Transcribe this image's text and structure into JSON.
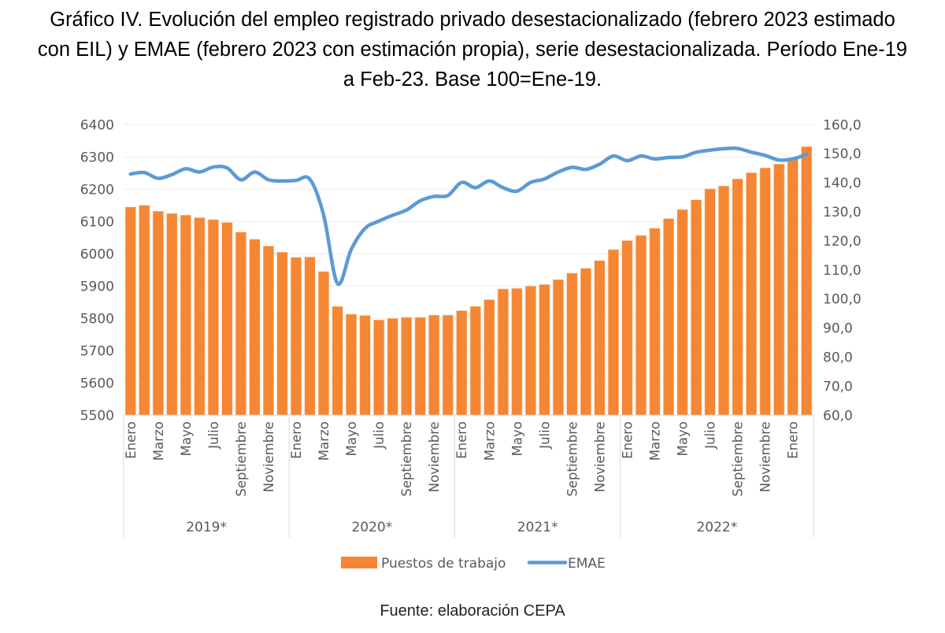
{
  "chart_data": {
    "type": "bar+line",
    "title": "Gráfico IV. Evolución del empleo registrado privado desestacionalizado (febrero 2023 estimado con EIL) y EMAE (febrero 2023 con estimación propia), serie desestacionalizada. Período Ene-19 a Feb-23. Base 100=Ene-19.",
    "x_tick_labels": [
      "Enero",
      "",
      "Marzo",
      "",
      "Mayo",
      "",
      "Julio",
      "",
      "Septiembre",
      "",
      "Noviembre",
      "",
      "Enero",
      "",
      "Marzo",
      "",
      "Mayo",
      "",
      "Julio",
      "",
      "Septiembre",
      "",
      "Noviembre",
      "",
      "Enero",
      "",
      "Marzo",
      "",
      "Mayo",
      "",
      "Julio",
      "",
      "Septiembre",
      "",
      "Noviembre",
      "",
      "Enero",
      "",
      "Marzo",
      "",
      "Mayo",
      "",
      "Julio",
      "",
      "Septiembre",
      "",
      "Noviembre",
      "",
      "Enero",
      ""
    ],
    "year_groups": [
      {
        "label": "2019*",
        "start": 0,
        "count": 12
      },
      {
        "label": "2020*",
        "start": 12,
        "count": 12
      },
      {
        "label": "2021*",
        "start": 24,
        "count": 12
      },
      {
        "label": "2022*",
        "start": 36,
        "count": 14
      }
    ],
    "left_axis": {
      "ylim": [
        5500,
        6400
      ],
      "ticks": [
        "5500",
        "5600",
        "5700",
        "5800",
        "5900",
        "6000",
        "6100",
        "6200",
        "6300",
        "6400"
      ]
    },
    "right_axis": {
      "ylim": [
        60,
        160
      ],
      "ticks": [
        "60,0",
        "70,0",
        "80,0",
        "90,0",
        "100,0",
        "110,0",
        "120,0",
        "130,0",
        "140,0",
        "150,0",
        "160,0"
      ]
    },
    "grid": true,
    "legend_position": "bottom",
    "series": [
      {
        "name": "Puestos de trabajo",
        "type": "bar",
        "axis": "left",
        "color": "#F58634",
        "values": [
          6145,
          6150,
          6132,
          6125,
          6120,
          6112,
          6106,
          6097,
          6067,
          6045,
          6024,
          6005,
          5989,
          5990,
          5945,
          5837,
          5813,
          5809,
          5795,
          5800,
          5803,
          5803,
          5810,
          5810,
          5824,
          5837,
          5858,
          5891,
          5893,
          5900,
          5905,
          5920,
          5940,
          5955,
          5979,
          6013,
          6041,
          6057,
          6079,
          6109,
          6137,
          6167,
          6201,
          6210,
          6232,
          6251,
          6266,
          6278,
          6294,
          6332
        ]
      },
      {
        "name": "EMAE",
        "type": "line",
        "axis": "right",
        "color": "#5B9BD5",
        "values": [
          143.0,
          143.5,
          141.5,
          142.8,
          144.8,
          143.7,
          145.4,
          145.1,
          141.0,
          143.7,
          141.0,
          140.6,
          140.8,
          141.2,
          128.8,
          105.3,
          117.1,
          124.3,
          126.8,
          128.8,
          130.6,
          133.8,
          135.3,
          135.6,
          140.1,
          138.3,
          140.6,
          138.3,
          137.1,
          140.1,
          141.3,
          143.7,
          145.3,
          144.6,
          146.4,
          149.2,
          147.6,
          149.2,
          148.2,
          148.7,
          148.9,
          150.5,
          151.2,
          151.7,
          151.8,
          150.5,
          149.4,
          147.8,
          148.2,
          149.8
        ]
      }
    ]
  },
  "source": "Fuente: elaboración CEPA"
}
